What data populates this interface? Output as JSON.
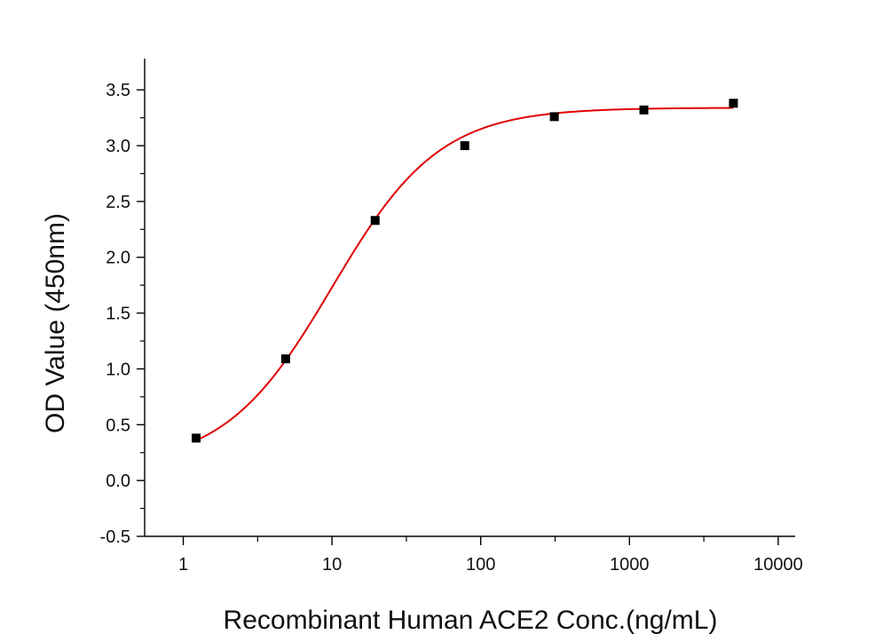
{
  "chart_data": {
    "type": "scatter",
    "title": "",
    "xlabel": "Recombinant Human ACE2 Conc.(ng/mL)",
    "ylabel": "OD Value (450nm)",
    "x_scale": "log",
    "xlim": [
      0.55,
      13000
    ],
    "ylim": [
      -0.5,
      3.78
    ],
    "x_ticks": [
      1,
      10,
      100,
      1000,
      10000
    ],
    "x_tick_labels": [
      "1",
      "10",
      "100",
      "1000",
      "10000"
    ],
    "y_ticks": [
      -0.5,
      0.0,
      0.5,
      1.0,
      1.5,
      2.0,
      2.5,
      3.0,
      3.5
    ],
    "y_tick_labels": [
      "-0.5",
      "0.0",
      "0.5",
      "1.0",
      "1.5",
      "2.0",
      "2.5",
      "3.0",
      "3.5"
    ],
    "grid": false,
    "legend": "none",
    "series": [
      {
        "kind": "points",
        "color": "#000000",
        "marker": "square",
        "x": [
          1.22,
          4.88,
          19.5,
          78.1,
          312.5,
          1250,
          5000
        ],
        "y": [
          0.38,
          1.09,
          2.33,
          3.0,
          3.26,
          3.32,
          3.38
        ]
      },
      {
        "kind": "fit-curve",
        "color": "#e00000",
        "model": "4PL",
        "params": {
          "bottom": 0.12,
          "top": 3.34,
          "ec50": 10.0,
          "hill": 1.2
        },
        "x_range": [
          1.22,
          5000
        ]
      }
    ],
    "colors": {
      "axis": "#000000",
      "points": "#000000",
      "curve": "#e00000"
    }
  }
}
